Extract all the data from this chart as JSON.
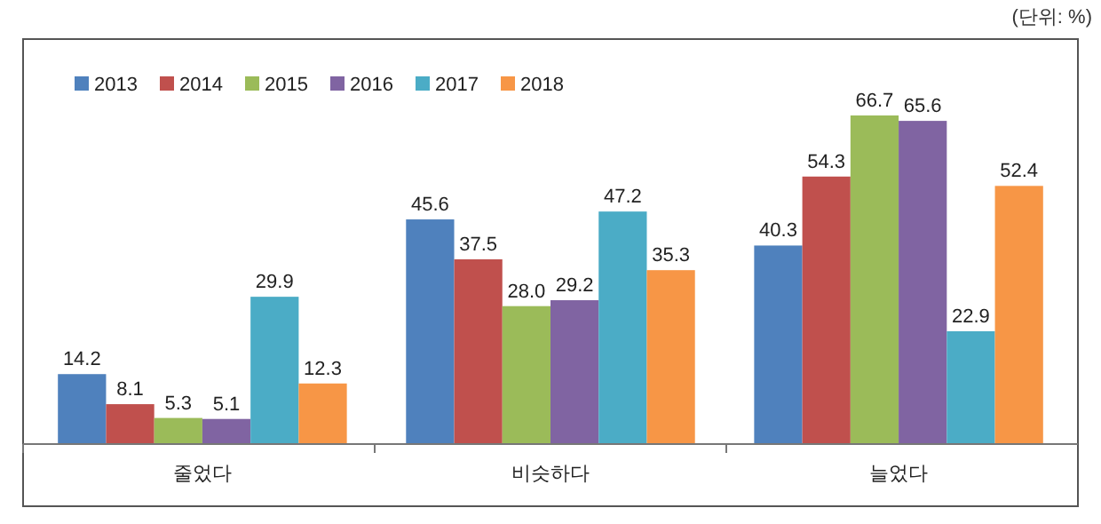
{
  "chart_data": {
    "type": "bar",
    "categories": [
      "줄었다",
      "비슷하다",
      "늘었다"
    ],
    "series": [
      {
        "name": "2013",
        "color": "#4f81bd",
        "values": [
          14.2,
          45.6,
          40.3
        ],
        "value_labels": [
          "14.2",
          "45.6",
          "40.3"
        ]
      },
      {
        "name": "2014",
        "color": "#c0504d",
        "values": [
          8.1,
          37.5,
          54.3
        ],
        "value_labels": [
          "8.1",
          "37.5",
          "54.3"
        ]
      },
      {
        "name": "2015",
        "color": "#9bbb59",
        "values": [
          5.3,
          28.0,
          66.7
        ],
        "value_labels": [
          "5.3",
          "28.0",
          "66.7"
        ]
      },
      {
        "name": "2016",
        "color": "#8064a2",
        "values": [
          5.1,
          29.2,
          65.6
        ],
        "value_labels": [
          "5.1",
          "29.2",
          "65.6"
        ]
      },
      {
        "name": "2017",
        "color": "#4bacc6",
        "values": [
          29.9,
          47.2,
          22.9
        ],
        "value_labels": [
          "29.9",
          "47.2",
          "22.9"
        ]
      },
      {
        "name": "2018",
        "color": "#f79646",
        "values": [
          12.3,
          35.3,
          52.4
        ],
        "value_labels": [
          "12.3",
          "35.3",
          "52.4"
        ]
      }
    ],
    "legend": "top left",
    "annotations": [
      "(단위: %)"
    ]
  }
}
